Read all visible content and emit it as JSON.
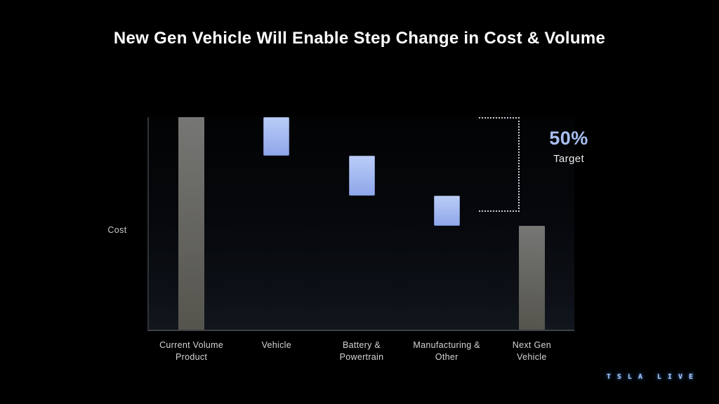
{
  "title": "New Gen Vehicle Will Enable Step Change in Cost & Volume",
  "watermark": {
    "word1": "TSLA",
    "word2": "LIVE"
  },
  "chart_data": {
    "type": "waterfall",
    "title": "New Gen Vehicle Will Enable Step Change in Cost & Volume",
    "xlabel": "",
    "ylabel": "Cost",
    "ylim": [
      0,
      100
    ],
    "grid": false,
    "units": "percent of current volume product cost (estimated from bar pixels, no numeric axis shown)",
    "categories": [
      "Current Volume Product",
      "Vehicle",
      "Battery & Powertrain",
      "Manufacturing & Other",
      "Next Gen Vehicle"
    ],
    "bars": [
      {
        "label": "Current Volume Product",
        "label_lines": [
          "Current Volume",
          "Product"
        ],
        "start": 0,
        "end": 100,
        "role": "total",
        "color_key": "gray"
      },
      {
        "label": "Vehicle",
        "label_lines": [
          "Vehicle"
        ],
        "start": 100,
        "end": 82,
        "role": "decrease",
        "color_key": "blue"
      },
      {
        "label": "Battery & Powertrain",
        "label_lines": [
          "Battery &",
          "Powertrain"
        ],
        "start": 82,
        "end": 63,
        "role": "decrease",
        "color_key": "blue"
      },
      {
        "label": "Manufacturing & Other",
        "label_lines": [
          "Manufacturing &",
          "Other"
        ],
        "start": 63,
        "end": 49,
        "role": "decrease",
        "color_key": "blue"
      },
      {
        "label": "Next Gen Vehicle",
        "label_lines": [
          "Next Gen",
          "Vehicle"
        ],
        "start": 0,
        "end": 49,
        "role": "total",
        "color_key": "gray"
      }
    ],
    "bracket": {
      "from_value": 100,
      "to_value": 56
    },
    "annotation": {
      "value": "50%",
      "label": "Target"
    },
    "colors": {
      "background": "#000000",
      "bar_gray_top": "#767674",
      "bar_gray_bottom": "#55544d",
      "bar_blue_top": "#bbcdf7",
      "bar_blue_bottom": "#8ea6ea",
      "accent_text": "#a9bff2",
      "axis_line": "#3e4247",
      "dotted_line": "#c9d0d9",
      "label_text": "#d4d4d4"
    },
    "legend": null
  }
}
